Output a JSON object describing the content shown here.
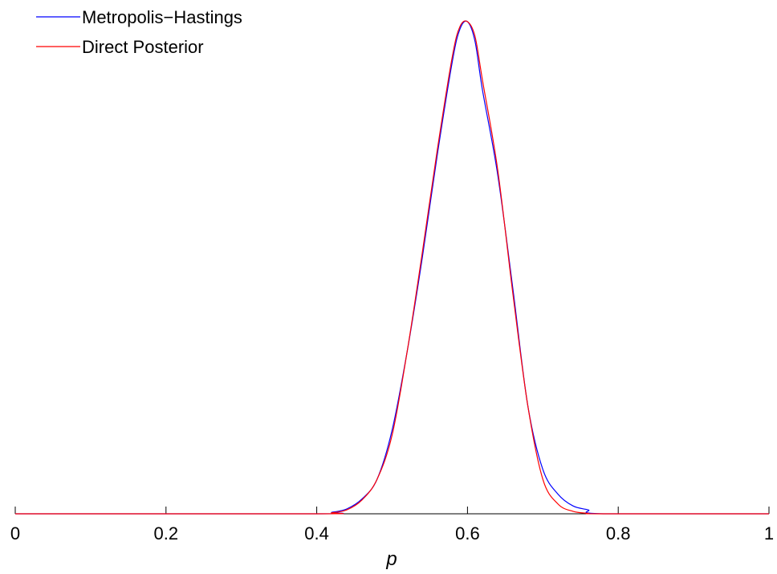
{
  "chart_data": {
    "type": "line",
    "xlabel": "p",
    "ylabel": "",
    "xlim": [
      0,
      1
    ],
    "ylim": [
      0,
      1
    ],
    "xticks": [
      "0",
      "0.2",
      "0.4",
      "0.6",
      "0.8",
      "1"
    ],
    "grid": false,
    "legend": "top-left",
    "series": [
      {
        "name": "Metropolis−Hastings",
        "color": "#0000ff",
        "x": [
          0,
          0.4,
          0.42,
          0.44,
          0.46,
          0.48,
          0.5,
          0.52,
          0.54,
          0.56,
          0.58,
          0.59,
          0.6,
          0.61,
          0.62,
          0.64,
          0.66,
          0.68,
          0.7,
          0.72,
          0.74,
          0.76,
          0.78,
          1
        ],
        "y": [
          0,
          0.0,
          0.003,
          0.01,
          0.03,
          0.07,
          0.17,
          0.33,
          0.52,
          0.73,
          0.92,
          0.985,
          1.0,
          0.96,
          0.86,
          0.69,
          0.46,
          0.22,
          0.09,
          0.04,
          0.016,
          0.008,
          0.0,
          0
        ]
      },
      {
        "name": "Direct Posterior",
        "color": "#ff0000",
        "x": [
          0,
          0.4,
          0.42,
          0.44,
          0.46,
          0.48,
          0.5,
          0.52,
          0.54,
          0.56,
          0.58,
          0.59,
          0.6,
          0.61,
          0.62,
          0.64,
          0.66,
          0.68,
          0.7,
          0.72,
          0.74,
          0.76,
          0.78,
          1
        ],
        "y": [
          0,
          0.0,
          0.002,
          0.008,
          0.028,
          0.07,
          0.16,
          0.33,
          0.53,
          0.74,
          0.93,
          0.99,
          1.0,
          0.97,
          0.88,
          0.7,
          0.45,
          0.22,
          0.07,
          0.02,
          0.005,
          0.001,
          0.0,
          0
        ]
      }
    ]
  }
}
